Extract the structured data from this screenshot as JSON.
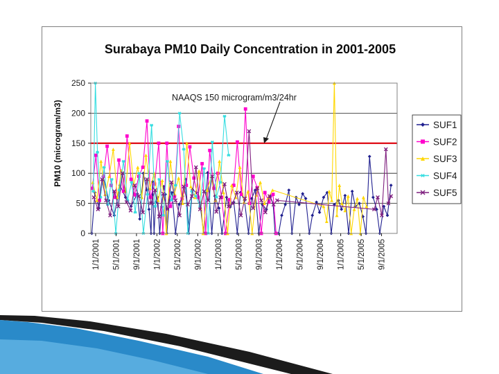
{
  "chart_data": {
    "type": "line",
    "title": "Surabaya PM10 Daily Concentration in 2001-2005",
    "ylabel": "PM10 (microgram/m3)",
    "xlabel": "",
    "ylim": [
      0,
      250
    ],
    "yticks": [
      0,
      50,
      100,
      150,
      200,
      250
    ],
    "grid": true,
    "legend_position": "right",
    "x_categories": [
      "1/1/2001",
      "5/1/2001",
      "9/1/2001",
      "1/1/2002",
      "5/1/2002",
      "9/1/2002",
      "1/1/2003",
      "5/1/2003",
      "9/1/2003",
      "1/1/2004",
      "5/1/2004",
      "9/1/2004",
      "1/1/2005",
      "5/1/2005",
      "9/1/2005"
    ],
    "annotation": {
      "text": "NAAQS 150 microgram/m3/24hr",
      "threshold": 150,
      "threshold_color": "#e0141e"
    },
    "series": [
      {
        "name": "SUF1",
        "color": "#1f1f8f",
        "marker": "diamond",
        "x": [
          0.2,
          0.8,
          1.6,
          2.4,
          3.5,
          4.6,
          5.7,
          6.8,
          7.9,
          9.1,
          9.6,
          10.3,
          11.0,
          11.4,
          11.8,
          12.1,
          12.4,
          12.7,
          13.1,
          13.5,
          13.9,
          14.3,
          14.6,
          14.9,
          15.4,
          15.9,
          16.6,
          17.3,
          18.0,
          18.6,
          19.2,
          19.9,
          20.7,
          21.4,
          22.1,
          22.9,
          23.7,
          24.3,
          25.1,
          25.7,
          26.6,
          27.3,
          28.0,
          28.7,
          29.3,
          30.1,
          30.9,
          31.5,
          32.2,
          32.9,
          33.6,
          34.4,
          35.1,
          35.7,
          36.1,
          36.8,
          37.4,
          38.1,
          38.8,
          39.4,
          40.2,
          40.8,
          41.5,
          42.1,
          42.8,
          43.4,
          44.2,
          44.8,
          45.6,
          46.3,
          47.1,
          47.7,
          48.5,
          49.1,
          49.8,
          50.5,
          51.2,
          51.8,
          52.6,
          53.3,
          53.9,
          54.6,
          55.3,
          56.0,
          56.6,
          57.4,
          58.1,
          58.8
        ],
        "y": [
          0,
          68,
          42,
          95,
          55,
          30,
          80,
          60,
          45,
          66,
          24,
          100,
          72,
          40,
          0,
          86,
          0,
          52,
          60,
          0,
          44,
          78,
          65,
          0,
          56,
          68,
          0,
          48,
          62,
          90,
          0,
          73,
          68,
          50,
          0,
          101,
          0,
          62,
          42,
          0,
          60,
          44,
          52,
          0,
          68,
          55,
          0,
          58,
          72,
          0,
          48,
          40,
          62,
          50,
          0,
          0,
          30,
          48,
          72,
          0,
          60,
          48,
          66,
          58,
          0,
          30,
          52,
          35,
          60,
          68,
          0,
          48,
          55,
          40,
          63,
          0,
          70,
          45,
          50,
          28,
          0,
          128,
          60,
          40,
          0,
          45,
          30,
          80
        ]
      },
      {
        "name": "SUF2",
        "color": "#ff00cc",
        "marker": "square",
        "x": [
          0.3,
          1.0,
          1.7,
          2.5,
          3.2,
          4.0,
          4.8,
          5.5,
          6.4,
          7.1,
          7.9,
          8.6,
          9.4,
          10.2,
          11.0,
          11.7,
          12.5,
          13.3,
          14.1,
          14.9,
          15.6,
          16.4,
          17.2,
          17.9,
          18.7,
          19.4,
          20.2,
          21.0,
          21.8,
          22.5,
          23.3,
          24.1,
          24.9,
          25.6,
          26.4,
          27.2,
          28.0,
          28.7,
          29.5,
          30.3,
          31.1,
          31.8,
          32.6,
          33.4,
          34.1,
          34.9,
          35.7,
          36.3
        ],
        "y": [
          75,
          130,
          55,
          95,
          145,
          80,
          60,
          122,
          70,
          162,
          90,
          64,
          95,
          110,
          187,
          60,
          82,
          150,
          0,
          150,
          45,
          62,
          178,
          58,
          80,
          144,
          92,
          60,
          116,
          0,
          138,
          75,
          100,
          60,
          0,
          56,
          80,
          152,
          65,
          207,
          50,
          95,
          76,
          0,
          68,
          52,
          65,
          0
        ]
      },
      {
        "name": "SUF3",
        "color": "#ffd700",
        "marker": "triangle",
        "x": [
          0.4,
          1.2,
          2.0,
          2.8,
          3.6,
          4.4,
          5.2,
          6.0,
          6.8,
          7.6,
          8.4,
          9.2,
          10.0,
          10.8,
          11.6,
          12.4,
          13.2,
          14.0,
          14.8,
          15.6,
          16.4,
          17.2,
          18.0,
          18.8,
          19.6,
          20.4,
          21.2,
          22.0,
          22.8,
          23.6,
          24.4,
          25.2,
          26.0,
          26.8,
          27.6,
          28.4,
          29.2,
          30.0,
          30.8,
          31.6,
          32.4,
          33.2,
          34.0,
          34.8,
          35.6,
          45.6,
          46.2,
          46.7,
          47.2,
          47.7,
          48.2,
          48.7,
          49.2,
          49.8,
          50.4,
          51.0,
          51.6,
          52.2,
          52.8,
          53.4,
          54.0
        ],
        "y": [
          85,
          55,
          120,
          65,
          95,
          140,
          60,
          105,
          70,
          150,
          80,
          110,
          60,
          130,
          75,
          100,
          55,
          88,
          0,
          120,
          66,
          92,
          50,
          150,
          78,
          60,
          104,
          0,
          72,
          95,
          55,
          120,
          68,
          0,
          80,
          60,
          110,
          52,
          70,
          0,
          64,
          85,
          50,
          60,
          72,
          45,
          20,
          70,
          55,
          250,
          30,
          80,
          50,
          38,
          62,
          0,
          40,
          58,
          0,
          60,
          45
        ]
      },
      {
        "name": "SUF4",
        "color": "#33dde0",
        "marker": "star",
        "x": [
          0.5,
          0.9,
          1.3,
          1.9,
          2.6,
          3.3,
          4.1,
          4.9,
          5.6,
          6.4,
          7.2,
          8.0,
          8.7,
          9.5,
          10.3,
          11.1,
          11.9,
          12.6,
          13.4,
          14.2,
          15.0,
          15.8,
          16.6,
          17.4,
          18.2,
          19.0,
          19.8,
          20.6,
          21.4,
          22.2,
          23.0,
          23.8,
          24.6,
          25.4,
          26.2,
          27.0
        ],
        "y": [
          70,
          250,
          135,
          60,
          110,
          48,
          90,
          0,
          72,
          120,
          55,
          85,
          35,
          100,
          0,
          65,
          180,
          45,
          90,
          30,
          120,
          55,
          80,
          200,
          140,
          0,
          70,
          62,
          45,
          108,
          0,
          152,
          60,
          85,
          195,
          130
        ]
      },
      {
        "name": "SUF5",
        "color": "#7f1f7f",
        "marker": "x",
        "x": [
          0.6,
          1.4,
          2.2,
          3.0,
          3.8,
          4.6,
          5.4,
          6.2,
          7.0,
          7.8,
          8.6,
          9.4,
          10.2,
          11.0,
          11.8,
          12.6,
          13.4,
          14.2,
          15.0,
          15.8,
          16.6,
          17.4,
          18.2,
          19.0,
          19.8,
          20.6,
          21.4,
          22.2,
          23.0,
          23.8,
          24.6,
          25.4,
          26.2,
          27.0,
          27.8,
          28.6,
          29.4,
          30.2,
          31.0,
          31.8,
          32.6,
          33.4,
          34.2,
          35.0,
          35.8,
          36.5,
          55.5,
          56.2,
          57.0,
          57.8,
          58.3,
          58.8
        ],
        "y": [
          60,
          40,
          90,
          55,
          30,
          70,
          45,
          100,
          52,
          38,
          80,
          62,
          35,
          90,
          50,
          72,
          28,
          66,
          40,
          85,
          55,
          30,
          78,
          48,
          62,
          110,
          40,
          70,
          55,
          95,
          36,
          60,
          82,
          45,
          50,
          68,
          30,
          58,
          170,
          42,
          75,
          55,
          35,
          62,
          48,
          55,
          40,
          60,
          30,
          140,
          50,
          62
        ]
      }
    ]
  }
}
